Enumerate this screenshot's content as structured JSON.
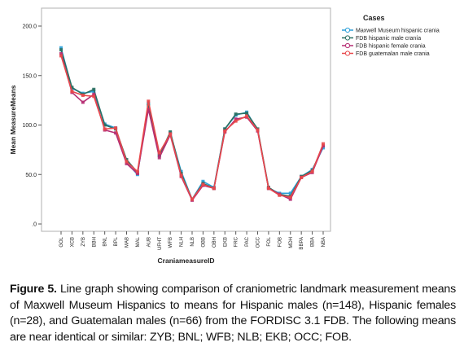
{
  "chart_data": {
    "type": "line",
    "title": "",
    "xlabel": "CraniameasureID",
    "ylabel": "Mean MeasureMeans",
    "ylim": [
      0,
      200
    ],
    "y_ticks": [
      ".0",
      "50.0",
      "100.0",
      "150.0",
      "200.0"
    ],
    "grid": false,
    "legend_title": "Cases",
    "legend_position": "top-right",
    "categories": [
      "GOL",
      "XCB",
      "ZYB",
      "BBH",
      "BNL",
      "BPL",
      "MAB",
      "MAL",
      "AUB",
      "UFHT",
      "WFB",
      "NLH",
      "NLB",
      "OBB",
      "OBH",
      "EKB",
      "FRC",
      "PAC",
      "OCC",
      "FOL",
      "FOB",
      "MDH",
      "BBPA",
      "BBA",
      "NBA"
    ],
    "series": [
      {
        "name": "Maxwell Museum hispanic crania",
        "color": "#2a9fd8",
        "values": [
          178,
          137,
          132,
          134,
          101,
          97,
          62,
          50,
          122,
          70,
          92,
          53,
          25,
          43,
          37,
          96,
          110,
          113,
          95,
          36,
          31,
          31,
          48,
          55,
          77
        ]
      },
      {
        "name": "FDB hispanic male cranía",
        "color": "#2a6f62",
        "values": [
          176,
          138,
          131,
          136,
          100,
          96,
          65,
          52,
          120,
          69,
          93,
          51,
          25,
          41,
          36,
          96,
          111,
          112,
          96,
          37,
          30,
          28,
          48,
          54,
          79
        ]
      },
      {
        "name": "FDB hispanic female crania",
        "color": "#b52d73",
        "values": [
          172,
          133,
          123,
          131,
          95,
          92,
          61,
          51,
          116,
          67,
          90,
          48,
          24,
          39,
          36,
          93,
          106,
          108,
          94,
          36,
          30,
          25,
          47,
          52,
          79
        ]
      },
      {
        "name": "FDB guatemalan male crania",
        "color": "#e8484b",
        "values": [
          170,
          134,
          130,
          129,
          96,
          97,
          63,
          53,
          124,
          72,
          91,
          49,
          25,
          40,
          36,
          94,
          104,
          109,
          95,
          36,
          29,
          27,
          47,
          53,
          81
        ]
      }
    ]
  },
  "caption": {
    "label": "Figure 5.",
    "text": " Line graph showing comparison of craniometric landmark measurement means of Maxwell Museum Hispanics to means for Hispanic males (n=148), Hispanic females (n=28), and Guatemalan males (n=66) from the FORDISC 3.1 FDB. The following means are near identical or similar: ZYB; BNL; WFB; NLB; EKB; OCC; FOB."
  }
}
